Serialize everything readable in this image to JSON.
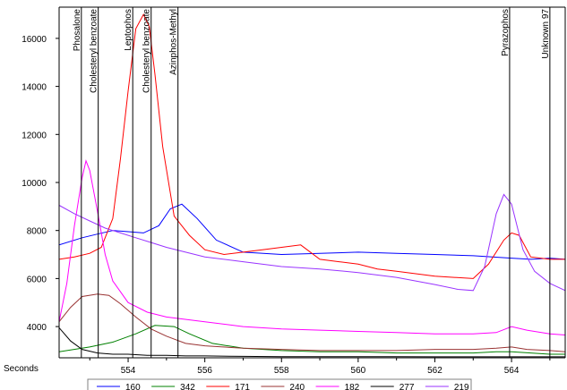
{
  "chart_data": {
    "type": "line",
    "x_axis_label": "Seconds",
    "xlim": [
      552.2,
      565.4
    ],
    "ylim": [
      2700,
      17300
    ],
    "x_ticks": [
      554,
      556,
      558,
      560,
      562,
      564
    ],
    "y_ticks": [
      4000,
      6000,
      8000,
      10000,
      12000,
      14000,
      16000
    ],
    "grid": false,
    "legend_position": "bottom",
    "markers": [
      {
        "label": "Phosalone",
        "x": 552.78
      },
      {
        "label": "Cholesteryl benzoate",
        "x": 553.22
      },
      {
        "label": "Leptophos",
        "x": 554.12
      },
      {
        "label": "Cholesteryl benzoate",
        "x": 554.6
      },
      {
        "label": "Azinphos-Methyl",
        "x": 555.3
      },
      {
        "label": "Pyrazophos",
        "x": 563.95
      },
      {
        "label": "Unknown 97",
        "x": 565.0
      }
    ],
    "series": [
      {
        "name": "160",
        "color": "#0000ff",
        "x": [
          552.2,
          552.8,
          553.2,
          553.6,
          554.0,
          554.4,
          554.8,
          555.1,
          555.4,
          555.8,
          556.3,
          557.0,
          558.0,
          559.0,
          560.0,
          561.0,
          562.0,
          563.0,
          563.5,
          564.0,
          564.5,
          565.0,
          565.4
        ],
        "y": [
          7400,
          7700,
          7850,
          8000,
          7950,
          7900,
          8200,
          8900,
          9100,
          8500,
          7600,
          7100,
          7000,
          7050,
          7100,
          7050,
          7000,
          6950,
          6900,
          6850,
          6800,
          6850,
          6800
        ]
      },
      {
        "name": "342",
        "color": "#008000",
        "x": [
          552.2,
          553.0,
          553.6,
          554.2,
          554.7,
          555.2,
          555.6,
          556.2,
          557.0,
          558.0,
          559.0,
          560.0,
          561.0,
          562.0,
          563.0,
          563.6,
          564.0,
          564.5,
          565.0,
          565.4
        ],
        "y": [
          2950,
          3150,
          3350,
          3700,
          4050,
          4000,
          3700,
          3300,
          3100,
          3000,
          2950,
          2950,
          2900,
          2900,
          2900,
          2950,
          2950,
          2900,
          2850,
          2850
        ]
      },
      {
        "name": "171",
        "color": "#ff0000",
        "x": [
          552.2,
          552.6,
          553.0,
          553.3,
          553.6,
          553.8,
          554.0,
          554.2,
          554.4,
          554.55,
          554.7,
          554.9,
          555.2,
          555.6,
          556.0,
          556.5,
          557.0,
          557.5,
          558.0,
          558.5,
          559.0,
          559.5,
          560.0,
          560.5,
          561.0,
          561.5,
          562.0,
          562.5,
          563.0,
          563.4,
          563.8,
          564.0,
          564.2,
          564.5,
          565.0,
          565.4
        ],
        "y": [
          6800,
          6900,
          7050,
          7300,
          8500,
          11000,
          13800,
          16400,
          17000,
          16500,
          14500,
          11500,
          8600,
          7800,
          7200,
          7000,
          7100,
          7200,
          7300,
          7400,
          6800,
          6700,
          6600,
          6400,
          6300,
          6200,
          6100,
          6050,
          6000,
          6600,
          7600,
          7900,
          7800,
          6900,
          6800,
          6800
        ]
      },
      {
        "name": "240",
        "color": "#993333",
        "x": [
          552.2,
          552.5,
          552.8,
          553.2,
          553.5,
          553.8,
          554.2,
          554.6,
          555.0,
          555.5,
          556.0,
          557.0,
          558.0,
          559.0,
          560.0,
          561.0,
          562.0,
          563.0,
          563.6,
          564.0,
          564.4,
          565.0,
          565.4
        ],
        "y": [
          4200,
          4800,
          5250,
          5350,
          5300,
          4950,
          4400,
          3900,
          3600,
          3300,
          3200,
          3100,
          3050,
          3000,
          3000,
          3000,
          3050,
          3050,
          3100,
          3150,
          3050,
          3000,
          2950
        ]
      },
      {
        "name": "182",
        "color": "#ff00ff",
        "x": [
          552.2,
          552.4,
          552.6,
          552.8,
          552.9,
          553.0,
          553.2,
          553.4,
          553.6,
          554.0,
          554.5,
          555.0,
          556.0,
          557.0,
          558.0,
          559.0,
          560.0,
          561.0,
          562.0,
          563.0,
          563.6,
          564.0,
          564.4,
          565.0,
          565.4
        ],
        "y": [
          4200,
          5800,
          8200,
          10200,
          10900,
          10500,
          8800,
          7000,
          5900,
          5000,
          4600,
          4400,
          4200,
          4000,
          3900,
          3850,
          3800,
          3750,
          3700,
          3700,
          3750,
          4000,
          3850,
          3700,
          3650
        ]
      },
      {
        "name": "277",
        "color": "#000000",
        "x": [
          552.2,
          552.5,
          552.8,
          553.2,
          553.6,
          554.0,
          554.5,
          555.0,
          555.5,
          556.0,
          557.0,
          558.0,
          559.0,
          560.0,
          561.0,
          562.0,
          563.0,
          564.0,
          565.0,
          565.4
        ],
        "y": [
          3950,
          3400,
          3050,
          2900,
          2850,
          2850,
          2800,
          2800,
          2780,
          2780,
          2760,
          2750,
          2750,
          2750,
          2750,
          2740,
          2740,
          2740,
          2740,
          2740
        ]
      },
      {
        "name": "219",
        "color": "#9933ff",
        "x": [
          552.2,
          552.6,
          553.0,
          553.4,
          553.8,
          554.2,
          554.6,
          555.0,
          555.5,
          556.0,
          557.0,
          558.0,
          559.0,
          560.0,
          561.0,
          562.0,
          562.6,
          563.0,
          563.3,
          563.6,
          563.8,
          564.0,
          564.3,
          564.6,
          565.0,
          565.4
        ],
        "y": [
          9050,
          8700,
          8400,
          8100,
          7900,
          7700,
          7500,
          7300,
          7100,
          6900,
          6700,
          6500,
          6400,
          6250,
          6050,
          5750,
          5550,
          5500,
          6500,
          8700,
          9500,
          9100,
          7200,
          6300,
          5800,
          5500
        ]
      }
    ]
  }
}
